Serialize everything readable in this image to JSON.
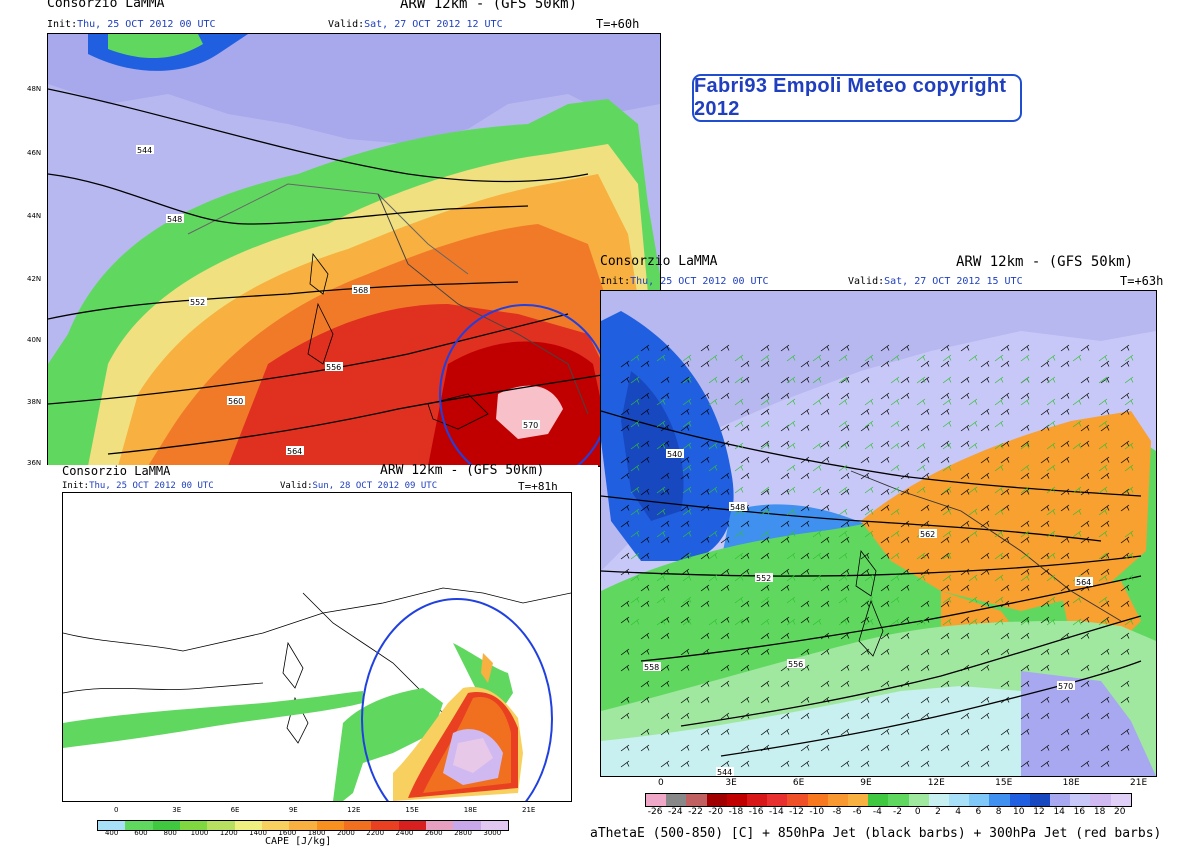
{
  "copyright": "Fabri93 Empoli Meteo copyright 2012",
  "panel1": {
    "source": "Consorzio LaMMA",
    "model": "ARW 12km - (GFS 50km)",
    "init_label": "Init:",
    "init_value": "Thu, 25 OCT 2012  00 UTC",
    "valid_label": "Valid:",
    "valid_value": "Sat, 27 OCT 2012  12 UTC",
    "lead": "T=+60h",
    "lat_labels": [
      "48N",
      "46N",
      "44N",
      "42N",
      "40N",
      "38N",
      "36N"
    ],
    "contour_labels": [
      "544",
      "548",
      "552",
      "556",
      "560",
      "564",
      "568",
      "570"
    ]
  },
  "panel2": {
    "source": "Consorzio LaMMA",
    "model": "ARW 12km - (GFS 50km)",
    "init_label": "Init:",
    "init_value": "Thu, 25 OCT 2012  00 UTC",
    "valid_label": "Valid:",
    "valid_value": "Sat, 27 OCT 2012  15 UTC",
    "lead": "T=+63h",
    "lon_labels": [
      "0",
      "3E",
      "6E",
      "9E",
      "12E",
      "15E",
      "18E",
      "21E"
    ],
    "contour_labels": [
      "540",
      "544",
      "548",
      "552",
      "556",
      "558",
      "562",
      "564",
      "570"
    ],
    "colorbar_labels": [
      "-26",
      "-24",
      "-22",
      "-20",
      "-18",
      "-16",
      "-14",
      "-12",
      "-10",
      "-8",
      "-6",
      "-4",
      "-2",
      "0",
      "2",
      "4",
      "6",
      "8",
      "10",
      "12",
      "14",
      "16",
      "18",
      "20"
    ],
    "colorbar_colors": [
      "#f0a8c8",
      "#888888",
      "#c06060",
      "#a00000",
      "#c00000",
      "#d81818",
      "#e83030",
      "#f05028",
      "#f87820",
      "#f89830",
      "#f8b040",
      "#40c840",
      "#60d860",
      "#a0e8a0",
      "#c8f0f0",
      "#a8e0f8",
      "#80c8f8",
      "#4090f0",
      "#2060e0",
      "#1848c0",
      "#a8a8f0",
      "#c8c8f8",
      "#d0b8f0",
      "#e0d0f8"
    ],
    "legend": "aThetaE (500-850) [C] + 850hPa Jet (black barbs) + 300hPa Jet (red barbs)"
  },
  "panel3": {
    "source": "Consorzio LaMMA",
    "model": "ARW 12km - (GFS 50km)",
    "init_label": "Init:",
    "init_value": "Thu, 25 OCT 2012  00 UTC",
    "valid_label": "Valid:",
    "valid_value": "Sun, 28 OCT 2012  09 UTC",
    "lead": "T=+81h",
    "lon_labels": [
      "0",
      "3E",
      "6E",
      "9E",
      "12E",
      "15E",
      "18E",
      "21E"
    ],
    "colorbar_labels": [
      "400",
      "600",
      "800",
      "1000",
      "1200",
      "1400",
      "1600",
      "1800",
      "2000",
      "2200",
      "2400",
      "2600",
      "2800",
      "3000"
    ],
    "colorbar_colors": [
      "#a8e0f8",
      "#60d860",
      "#40c840",
      "#80d840",
      "#b8e060",
      "#f0f080",
      "#f8d060",
      "#f8b040",
      "#f89020",
      "#f07020",
      "#e84020",
      "#d82020",
      "#e8a0c0",
      "#c8a8e8",
      "#e0c8f0"
    ],
    "unit_label": "CAPE [J/kg]"
  }
}
